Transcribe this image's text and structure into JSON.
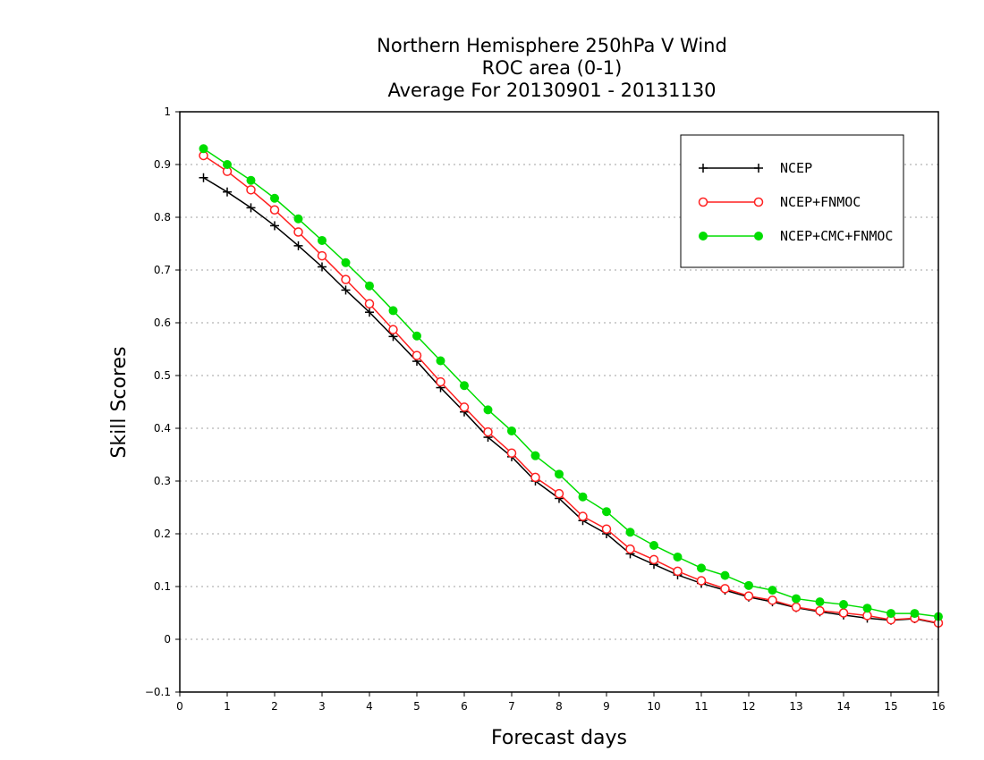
{
  "chart_data": {
    "type": "line",
    "title_lines": [
      "Northern Hemisphere 250hPa V Wind",
      "ROC area (0-1)",
      "Average For 20130901 - 20131130"
    ],
    "xlabel": "Forecast days",
    "ylabel": "Skill Scores",
    "xlim": [
      0,
      16
    ],
    "ylim": [
      -0.1,
      1
    ],
    "x_ticks": [
      "0",
      "1",
      "2",
      "3",
      "4",
      "5",
      "6",
      "7",
      "8",
      "9",
      "10",
      "11",
      "12",
      "13",
      "14",
      "15",
      "16"
    ],
    "y_ticks": [
      "−0.1",
      "0",
      "0.1",
      "0.2",
      "0.3",
      "0.4",
      "0.5",
      "0.6",
      "0.7",
      "0.8",
      "0.9",
      "1"
    ],
    "grid": "horizontal-dotted",
    "legend_position": "top-right",
    "x": [
      0.5,
      1,
      1.5,
      2,
      2.5,
      3,
      3.5,
      4,
      4.5,
      5,
      5.5,
      6,
      6.5,
      7,
      7.5,
      8,
      8.5,
      9,
      9.5,
      10,
      10.5,
      11,
      11.5,
      12,
      12.5,
      13,
      13.5,
      14,
      14.5,
      15,
      15.5,
      16
    ],
    "series": [
      {
        "name": "NCEP",
        "color": "#000000",
        "marker": "plus",
        "values": [
          0.875,
          0.848,
          0.818,
          0.784,
          0.746,
          0.706,
          0.662,
          0.62,
          0.574,
          0.527,
          0.477,
          0.431,
          0.383,
          0.346,
          0.3,
          0.267,
          0.225,
          0.2,
          0.162,
          0.142,
          0.122,
          0.106,
          0.093,
          0.08,
          0.071,
          0.06,
          0.052,
          0.046,
          0.04,
          0.036,
          0.039,
          0.03
        ]
      },
      {
        "name": "NCEP+FNMOC",
        "color": "#ff2020",
        "marker": "open-circle",
        "values": [
          0.917,
          0.887,
          0.852,
          0.814,
          0.772,
          0.727,
          0.682,
          0.636,
          0.587,
          0.538,
          0.488,
          0.44,
          0.393,
          0.353,
          0.307,
          0.276,
          0.233,
          0.209,
          0.171,
          0.151,
          0.129,
          0.111,
          0.096,
          0.082,
          0.074,
          0.061,
          0.054,
          0.05,
          0.045,
          0.037,
          0.04,
          0.031
        ]
      },
      {
        "name": "NCEP+CMC+FNMOC",
        "color": "#00dd00",
        "marker": "filled-circle",
        "values": [
          0.93,
          0.9,
          0.87,
          0.836,
          0.797,
          0.756,
          0.714,
          0.67,
          0.623,
          0.575,
          0.528,
          0.481,
          0.435,
          0.395,
          0.348,
          0.313,
          0.27,
          0.242,
          0.203,
          0.178,
          0.156,
          0.135,
          0.121,
          0.102,
          0.093,
          0.077,
          0.071,
          0.066,
          0.059,
          0.049,
          0.049,
          0.043
        ]
      }
    ]
  }
}
